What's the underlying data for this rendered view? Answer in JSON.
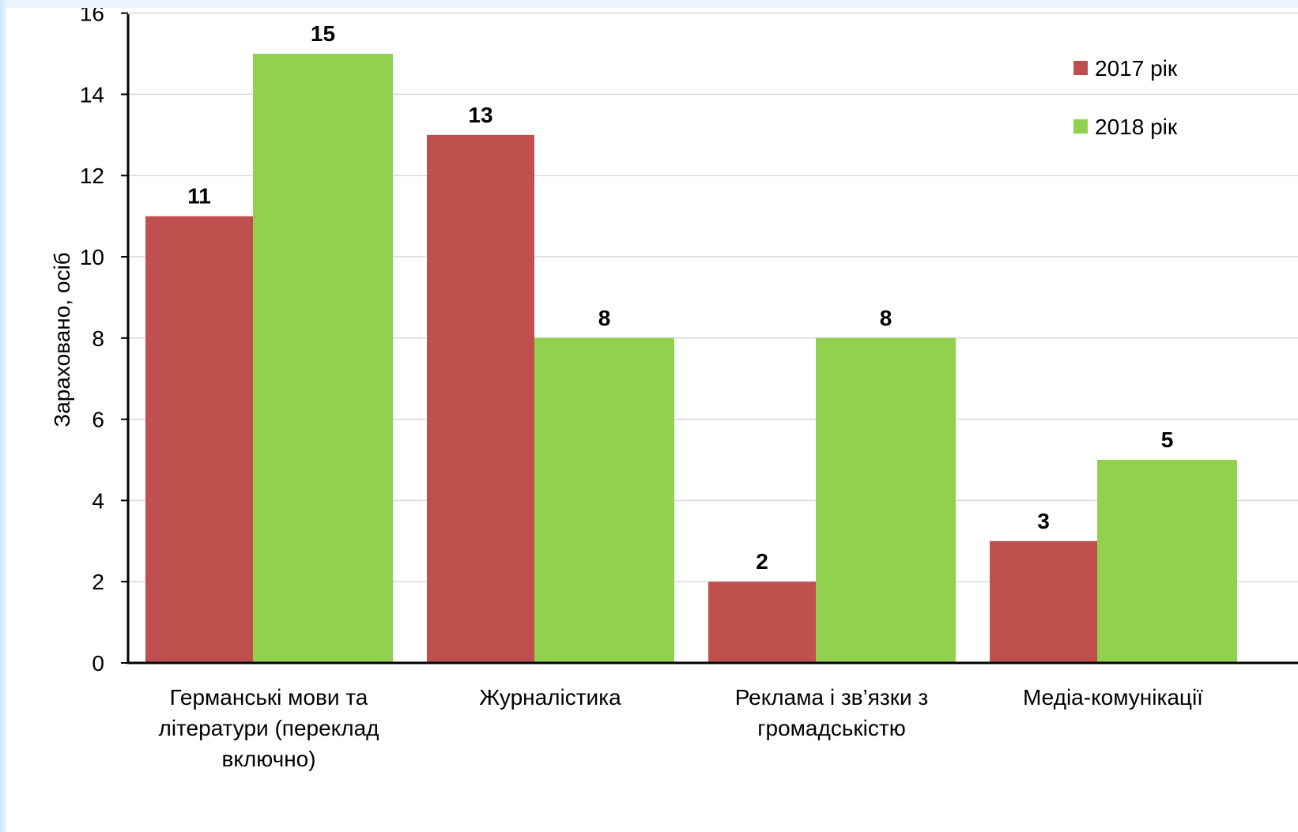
{
  "chart_data": {
    "type": "bar",
    "ylabel": "Зараховано, осіб",
    "ylim": [
      0,
      16
    ],
    "yticks": [
      0,
      2,
      4,
      6,
      8,
      10,
      12,
      14,
      16
    ],
    "grid": true,
    "legend_position": "top-right",
    "categories": [
      [
        "Германські мови та",
        "літератури (переклад",
        "включно)"
      ],
      [
        "Журналістика"
      ],
      [
        "Реклама і зв’язки з",
        "громадськістю"
      ],
      [
        "Медіа-комунікації"
      ]
    ],
    "series": [
      {
        "name": "2017 рік",
        "color": "#c0504d",
        "values": [
          11,
          13,
          2,
          3
        ]
      },
      {
        "name": "2018 рік",
        "color": "#92d050",
        "values": [
          15,
          8,
          8,
          5
        ]
      }
    ]
  }
}
